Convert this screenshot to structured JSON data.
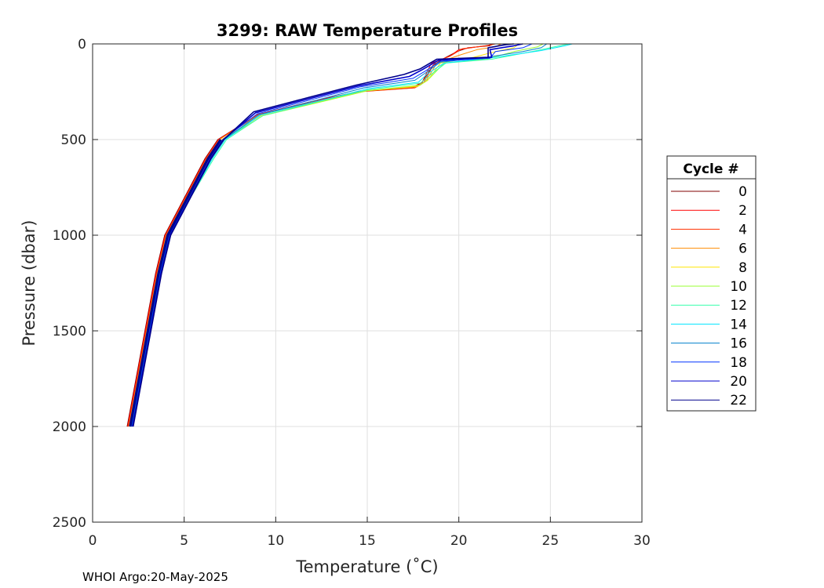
{
  "chart_data": {
    "type": "line",
    "title": "3299: RAW Temperature Profiles",
    "xlabel": "Temperature (˚C)",
    "ylabel": "Pressure (dbar)",
    "xlim": [
      0,
      30
    ],
    "ylim": [
      0,
      2500
    ],
    "y_reversed": true,
    "grid": true,
    "xticks": [
      0,
      5,
      10,
      15,
      20,
      25,
      30
    ],
    "yticks": [
      0,
      500,
      1000,
      1500,
      2000,
      2500
    ],
    "legend": {
      "title": "Cycle #",
      "placement": "outside-right"
    },
    "base_profile": [
      [
        2.05,
        2000
      ],
      [
        2.3,
        1800
      ],
      [
        2.6,
        1600
      ],
      [
        3.0,
        1450
      ],
      [
        3.3,
        1300
      ],
      [
        3.6,
        1200
      ],
      [
        3.85,
        1100
      ],
      [
        4.1,
        1000
      ],
      [
        4.6,
        900
      ],
      [
        5.2,
        800
      ],
      [
        5.7,
        700
      ],
      [
        6.3,
        600
      ],
      [
        7.0,
        500
      ],
      [
        8.0,
        420
      ],
      [
        9.0,
        370
      ],
      [
        10.5,
        340
      ],
      [
        12.0,
        300
      ],
      [
        14.0,
        260
      ],
      [
        16.5,
        230
      ],
      [
        17.8,
        200
      ],
      [
        18.4,
        150
      ],
      [
        19.3,
        100
      ],
      [
        21.5,
        80
      ],
      [
        22.0,
        50
      ],
      [
        23.0,
        20
      ],
      [
        24.0,
        0
      ]
    ],
    "series": [
      {
        "name": "0",
        "color": "#800000",
        "upper": [
          [
            2.05,
            2000
          ],
          [
            3.6,
            1200
          ],
          [
            4.1,
            1000
          ],
          [
            6.3,
            600
          ],
          [
            7.0,
            500
          ],
          [
            9.0,
            370
          ],
          [
            12.0,
            300
          ],
          [
            14.5,
            250
          ],
          [
            17.5,
            230
          ],
          [
            18.0,
            200
          ],
          [
            18.6,
            110
          ],
          [
            19.3,
            70
          ],
          [
            19.9,
            40
          ],
          [
            20.5,
            20
          ],
          [
            21.7,
            10
          ],
          [
            21.7,
            0
          ]
        ]
      },
      {
        "name": "2",
        "color": "#ff0000",
        "upper": [
          [
            2.05,
            2000
          ],
          [
            3.6,
            1200
          ],
          [
            4.1,
            1000
          ],
          [
            6.3,
            600
          ],
          [
            7.0,
            500
          ],
          [
            9.0,
            370
          ],
          [
            12.0,
            300
          ],
          [
            14.5,
            250
          ],
          [
            17.5,
            225
          ],
          [
            18.0,
            200
          ],
          [
            18.5,
            100
          ],
          [
            19.5,
            65
          ],
          [
            20.0,
            30
          ],
          [
            21.0,
            15
          ],
          [
            21.8,
            5
          ],
          [
            21.8,
            0
          ]
        ]
      },
      {
        "name": "4",
        "color": "#ff3000",
        "upper": [
          [
            2.05,
            2000
          ],
          [
            3.6,
            1200
          ],
          [
            4.1,
            1000
          ],
          [
            6.3,
            600
          ],
          [
            7.0,
            500
          ],
          [
            9.0,
            370
          ],
          [
            12.0,
            305
          ],
          [
            14.6,
            250
          ],
          [
            17.6,
            230
          ],
          [
            18.1,
            200
          ],
          [
            18.7,
            95
          ],
          [
            19.6,
            60
          ],
          [
            20.2,
            25
          ],
          [
            21.5,
            10
          ],
          [
            22.0,
            0
          ]
        ]
      },
      {
        "name": "6",
        "color": "#ff8c00",
        "upper": [
          [
            2.05,
            2000
          ],
          [
            3.6,
            1200
          ],
          [
            4.1,
            1000
          ],
          [
            6.3,
            600
          ],
          [
            7.0,
            500
          ],
          [
            9.1,
            370
          ],
          [
            12.2,
            305
          ],
          [
            14.8,
            245
          ],
          [
            17.7,
            225
          ],
          [
            18.2,
            195
          ],
          [
            18.8,
            100
          ],
          [
            20.0,
            60
          ],
          [
            21.0,
            30
          ],
          [
            22.0,
            15
          ],
          [
            22.3,
            0
          ]
        ]
      },
      {
        "name": "8",
        "color": "#ffe600",
        "upper": [
          [
            2.05,
            2000
          ],
          [
            3.6,
            1200
          ],
          [
            4.1,
            1000
          ],
          [
            6.4,
            600
          ],
          [
            7.1,
            500
          ],
          [
            9.2,
            375
          ],
          [
            12.3,
            305
          ],
          [
            15.0,
            245
          ],
          [
            17.8,
            220
          ],
          [
            18.3,
            190
          ],
          [
            19.0,
            100
          ],
          [
            20.8,
            70
          ],
          [
            22.0,
            40
          ],
          [
            23.0,
            20
          ],
          [
            23.3,
            0
          ]
        ]
      },
      {
        "name": "10",
        "color": "#99ff33",
        "upper": [
          [
            2.05,
            2000
          ],
          [
            3.6,
            1200
          ],
          [
            4.1,
            1000
          ],
          [
            6.5,
            600
          ],
          [
            7.2,
            500
          ],
          [
            9.3,
            375
          ],
          [
            12.4,
            305
          ],
          [
            15.0,
            245
          ],
          [
            17.9,
            215
          ],
          [
            18.4,
            180
          ],
          [
            19.2,
            100
          ],
          [
            21.5,
            80
          ],
          [
            23.0,
            40
          ],
          [
            24.3,
            15
          ],
          [
            24.6,
            0
          ]
        ]
      },
      {
        "name": "12",
        "color": "#33ffaa",
        "upper": [
          [
            2.05,
            2000
          ],
          [
            3.6,
            1200
          ],
          [
            4.1,
            1000
          ],
          [
            6.6,
            600
          ],
          [
            7.3,
            500
          ],
          [
            9.3,
            375
          ],
          [
            12.4,
            300
          ],
          [
            15.0,
            240
          ],
          [
            17.9,
            205
          ],
          [
            18.4,
            165
          ],
          [
            19.3,
            100
          ],
          [
            21.8,
            80
          ],
          [
            24.0,
            40
          ],
          [
            25.5,
            10
          ],
          [
            26.0,
            0
          ]
        ]
      },
      {
        "name": "14",
        "color": "#00e6ff",
        "upper": [
          [
            2.05,
            2000
          ],
          [
            3.6,
            1200
          ],
          [
            4.1,
            1000
          ],
          [
            6.5,
            600
          ],
          [
            7.2,
            500
          ],
          [
            9.2,
            370
          ],
          [
            12.3,
            300
          ],
          [
            15.0,
            235
          ],
          [
            17.8,
            200
          ],
          [
            18.3,
            155
          ],
          [
            19.2,
            100
          ],
          [
            22.0,
            70
          ],
          [
            24.5,
            35
          ],
          [
            25.8,
            10
          ],
          [
            26.2,
            0
          ]
        ]
      },
      {
        "name": "16",
        "color": "#0080cc",
        "upper": [
          [
            2.05,
            2000
          ],
          [
            3.6,
            1200
          ],
          [
            4.1,
            1000
          ],
          [
            6.4,
            600
          ],
          [
            7.1,
            500
          ],
          [
            9.1,
            370
          ],
          [
            12.2,
            295
          ],
          [
            14.8,
            230
          ],
          [
            17.6,
            190
          ],
          [
            18.2,
            150
          ],
          [
            19.0,
            95
          ],
          [
            21.5,
            70
          ],
          [
            23.5,
            40
          ],
          [
            24.5,
            20
          ],
          [
            24.8,
            0
          ]
        ]
      },
      {
        "name": "18",
        "color": "#0033ff",
        "upper": [
          [
            2.05,
            2000
          ],
          [
            3.6,
            1200
          ],
          [
            4.1,
            1000
          ],
          [
            6.3,
            600
          ],
          [
            7.0,
            500
          ],
          [
            9.0,
            365
          ],
          [
            12.0,
            290
          ],
          [
            14.6,
            225
          ],
          [
            17.5,
            180
          ],
          [
            18.2,
            140
          ],
          [
            19.0,
            90
          ],
          [
            21.7,
            75
          ],
          [
            22.0,
            40
          ],
          [
            23.5,
            20
          ],
          [
            24.0,
            0
          ]
        ]
      },
      {
        "name": "20",
        "color": "#0000cc",
        "upper": [
          [
            2.05,
            2000
          ],
          [
            3.6,
            1200
          ],
          [
            4.1,
            1000
          ],
          [
            6.3,
            600
          ],
          [
            7.0,
            500
          ],
          [
            8.9,
            360
          ],
          [
            11.9,
            285
          ],
          [
            14.5,
            220
          ],
          [
            17.3,
            170
          ],
          [
            18.0,
            135
          ],
          [
            18.9,
            85
          ],
          [
            21.8,
            70
          ],
          [
            21.7,
            30
          ],
          [
            23.0,
            10
          ],
          [
            23.5,
            0
          ]
        ]
      },
      {
        "name": "22",
        "color": "#00008b",
        "upper": [
          [
            2.05,
            2000
          ],
          [
            3.6,
            1200
          ],
          [
            4.1,
            1000
          ],
          [
            6.3,
            600
          ],
          [
            7.0,
            500
          ],
          [
            8.8,
            355
          ],
          [
            11.8,
            280
          ],
          [
            14.4,
            215
          ],
          [
            17.0,
            160
          ],
          [
            17.9,
            130
          ],
          [
            18.8,
            80
          ],
          [
            21.6,
            70
          ],
          [
            21.6,
            20
          ],
          [
            22.5,
            5
          ],
          [
            23.0,
            0
          ]
        ]
      }
    ],
    "footer": "WHOI Argo:20-May-2025"
  }
}
